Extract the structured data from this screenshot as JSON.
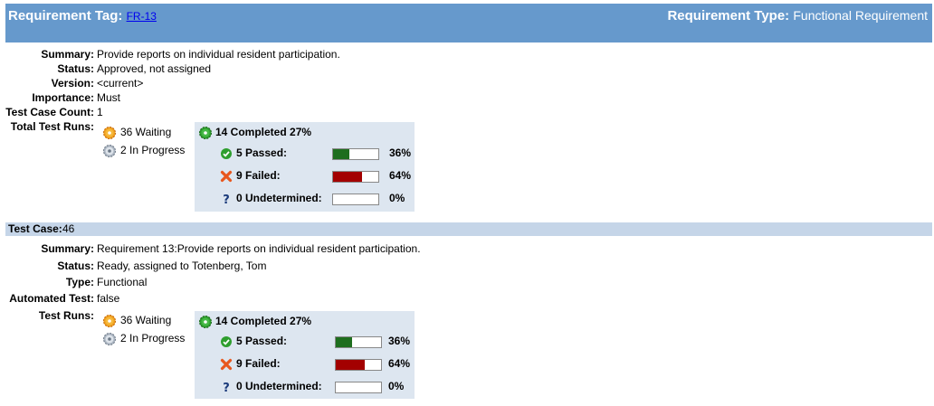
{
  "requirement": {
    "tag_label": "Requirement Tag:",
    "tag_value": "FR-13",
    "type_label": "Requirement Type:",
    "type_value": "Functional Requirement",
    "fields": [
      {
        "label": "Summary:",
        "value": "Provide reports on individual resident participation."
      },
      {
        "label": "Status:",
        "value": "Approved, not assigned"
      },
      {
        "label": "Version:",
        "value": "<current>"
      },
      {
        "label": "Importance:",
        "value": "Must"
      },
      {
        "label": "Test Case Count:",
        "value": "1"
      }
    ],
    "runs_label": "Total Test Runs:",
    "runs": {
      "waiting": "36 Waiting",
      "in_progress": "2 In Progress",
      "completed": "14 Completed 27%",
      "passed": "5 Passed:",
      "passed_pct": "36%",
      "passed_fraction": 0.36,
      "failed": "9 Failed:",
      "failed_pct": "64%",
      "failed_fraction": 0.64,
      "undetermined": "0 Undetermined:",
      "undetermined_pct": "0%",
      "undetermined_fraction": 0
    }
  },
  "test_case": {
    "label": "Test Case:",
    "value": "46",
    "fields": [
      {
        "label": "Summary:",
        "value": "Requirement 13:Provide reports on individual resident participation."
      },
      {
        "label": "Status:",
        "value": "Ready, assigned to Totenberg, Tom"
      },
      {
        "label": "Type:",
        "value": "Functional"
      },
      {
        "label": "Automated Test:",
        "value": "false"
      }
    ],
    "runs_label": "Test Runs:",
    "runs": {
      "waiting": "36 Waiting",
      "in_progress": "2 In Progress",
      "completed": "14  Completed 27%",
      "passed": "5  Passed:",
      "passed_pct": "36%",
      "passed_fraction": 0.36,
      "failed": "9  Failed:",
      "failed_pct": "64%",
      "failed_fraction": 0.64,
      "undetermined": "0  Undetermined:",
      "undetermined_pct": "0%",
      "undetermined_fraction": 0
    }
  },
  "colors": {
    "header_bg": "#6699cc",
    "passed": "#1e6e1e",
    "failed": "#a30000",
    "panel_bg": "#dde6f0"
  },
  "icons": {
    "waiting": "waiting-gear-icon",
    "in_progress": "in-progress-gear-icon",
    "completed": "completed-gear-icon",
    "passed": "check-circle-icon",
    "failed": "x-mark-icon",
    "undetermined": "question-mark-icon"
  }
}
